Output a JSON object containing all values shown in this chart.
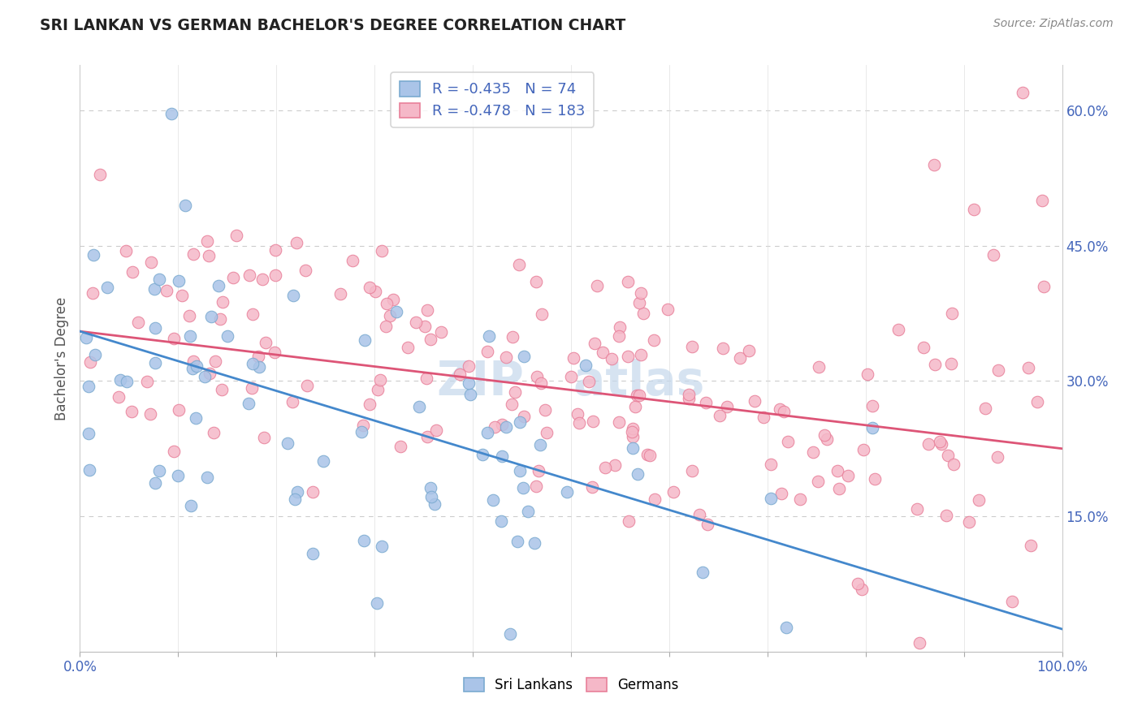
{
  "title": "SRI LANKAN VS GERMAN BACHELOR'S DEGREE CORRELATION CHART",
  "source_text": "Source: ZipAtlas.com",
  "ylabel": "Bachelor's Degree",
  "xlim": [
    0.0,
    1.0
  ],
  "ylim": [
    0.0,
    0.65
  ],
  "sri_lankan_fill": "#aac4e8",
  "sri_lankan_edge": "#7aaad0",
  "german_fill": "#f5b8c8",
  "german_edge": "#e8809a",
  "sri_line_color": "#4488cc",
  "ger_line_color": "#dd5577",
  "legend_R_sri": "-0.435",
  "legend_N_sri": "74",
  "legend_R_ger": "-0.478",
  "legend_N_ger": "183",
  "axis_label_color": "#4466bb",
  "watermark_color": "#c5d8ec",
  "grid_color": "#cccccc",
  "title_color": "#222222",
  "source_color": "#888888",
  "ylabel_color": "#555555",
  "sri_intercept": 0.355,
  "sri_slope": -0.33,
  "ger_intercept": 0.355,
  "ger_slope": -0.13
}
